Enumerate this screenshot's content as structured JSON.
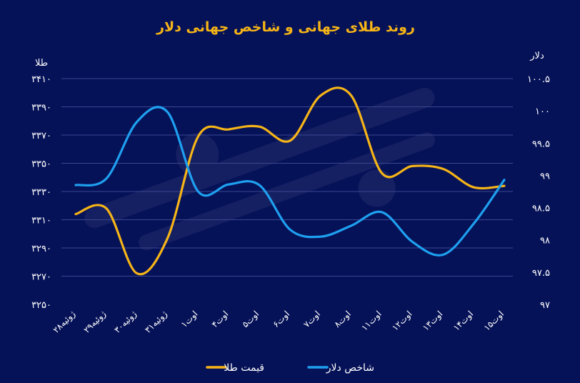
{
  "chart_data": {
    "type": "line",
    "title": "روند طلای جهانی و شاخص جهانی دلار",
    "left_axis_label": "طلا",
    "right_axis_label": "دلار",
    "categories": [
      "۲۸ژوئیه",
      "۲۹ژوئیه",
      "۳۰ژوئیه",
      "۳۱ژوئیه",
      "۱اوت",
      "۴اوت",
      "۵اوت",
      "۶اوت",
      "۷اوت",
      "۸اوت",
      "۱۱اوت",
      "۱۲اوت",
      "۱۳اوت",
      "۱۴اوت",
      "۱۵اوت"
    ],
    "left_ylim": [
      3250,
      3410
    ],
    "left_ticks": [
      3250,
      3270,
      3290,
      3310,
      3330,
      3350,
      3370,
      3390,
      3410
    ],
    "left_tick_labels": [
      "۳۲۵۰",
      "۳۲۷۰",
      "۳۲۹۰",
      "۳۳۱۰",
      "۳۳۳۰",
      "۳۳۵۰",
      "۳۳۷۰",
      "۳۳۹۰",
      "۳۴۱۰"
    ],
    "right_ylim": [
      97,
      100.5
    ],
    "right_ticks": [
      97,
      97.5,
      98,
      98.5,
      99,
      99.5,
      100,
      100.5
    ],
    "right_tick_labels": [
      "۹۷",
      "۹۷.۵",
      "۹۸",
      "۹۸.۵",
      "۹۹",
      "۹۹.۵",
      "۱۰۰",
      "۱۰۰.۵"
    ],
    "grid": true,
    "legend_position": "bottom",
    "series": [
      {
        "name": "قیمت طلا",
        "axis": "left",
        "color": "#F5B417",
        "values": [
          3314,
          3318,
          3272,
          3297,
          3369,
          3374,
          3376,
          3366,
          3398,
          3398,
          3343,
          3348,
          3346,
          3333,
          3334
        ]
      },
      {
        "name": "شاخص دلار",
        "axis": "right",
        "color": "#1EA0F0",
        "values": [
          98.85,
          98.95,
          99.83,
          99.98,
          98.75,
          98.86,
          98.85,
          98.16,
          98.05,
          98.22,
          98.43,
          97.97,
          97.77,
          98.25,
          98.93
        ]
      }
    ]
  }
}
